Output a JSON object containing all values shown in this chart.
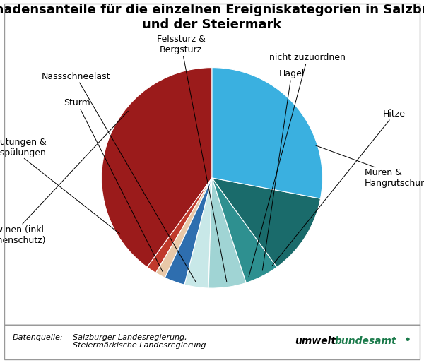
{
  "title": "Schadensanteile für die einzelnen Ereigniskategorien in Salzburg\nund der Steiermark",
  "slices": [
    {
      "label": "Muren &\nHangrutschungen",
      "value": 40.0,
      "color": "#9B1B1B"
    },
    {
      "label": "Hitze",
      "value": 1.5,
      "color": "#C0392B"
    },
    {
      "label": "Hagel",
      "value": 1.5,
      "color": "#E8C8A8"
    },
    {
      "label": "nicht zuzuordnen",
      "value": 3.0,
      "color": "#2E6EAF"
    },
    {
      "label": "Felssturz &\nBergsturz",
      "value": 3.5,
      "color": "#C8E8E8"
    },
    {
      "label": "Nassschneelast",
      "value": 5.5,
      "color": "#A0D4D4"
    },
    {
      "label": "Sturm",
      "value": 5.0,
      "color": "#2E9090"
    },
    {
      "label": "Überflutungen &\nUnterspülungen",
      "value": 12.0,
      "color": "#1A6B6B"
    },
    {
      "label": "Lawinen (inkl.\nLawinenschutz)",
      "value": 28.0,
      "color": "#3AB0E0"
    }
  ],
  "startangle": 90,
  "footer_source_label": "Datenquelle:",
  "footer_source_text": "Salzburger Landesregierung,\nSteiermärkische Landesregierung",
  "footer_umwelt": "umwelt",
  "footer_bundesamt": "bundesamt",
  "title_fontsize": 13,
  "label_fontsize": 9,
  "background_color": "#FFFFFF",
  "border_color": "#999999",
  "umwelt_color": "#1A7A4A",
  "text_color": "#000000"
}
